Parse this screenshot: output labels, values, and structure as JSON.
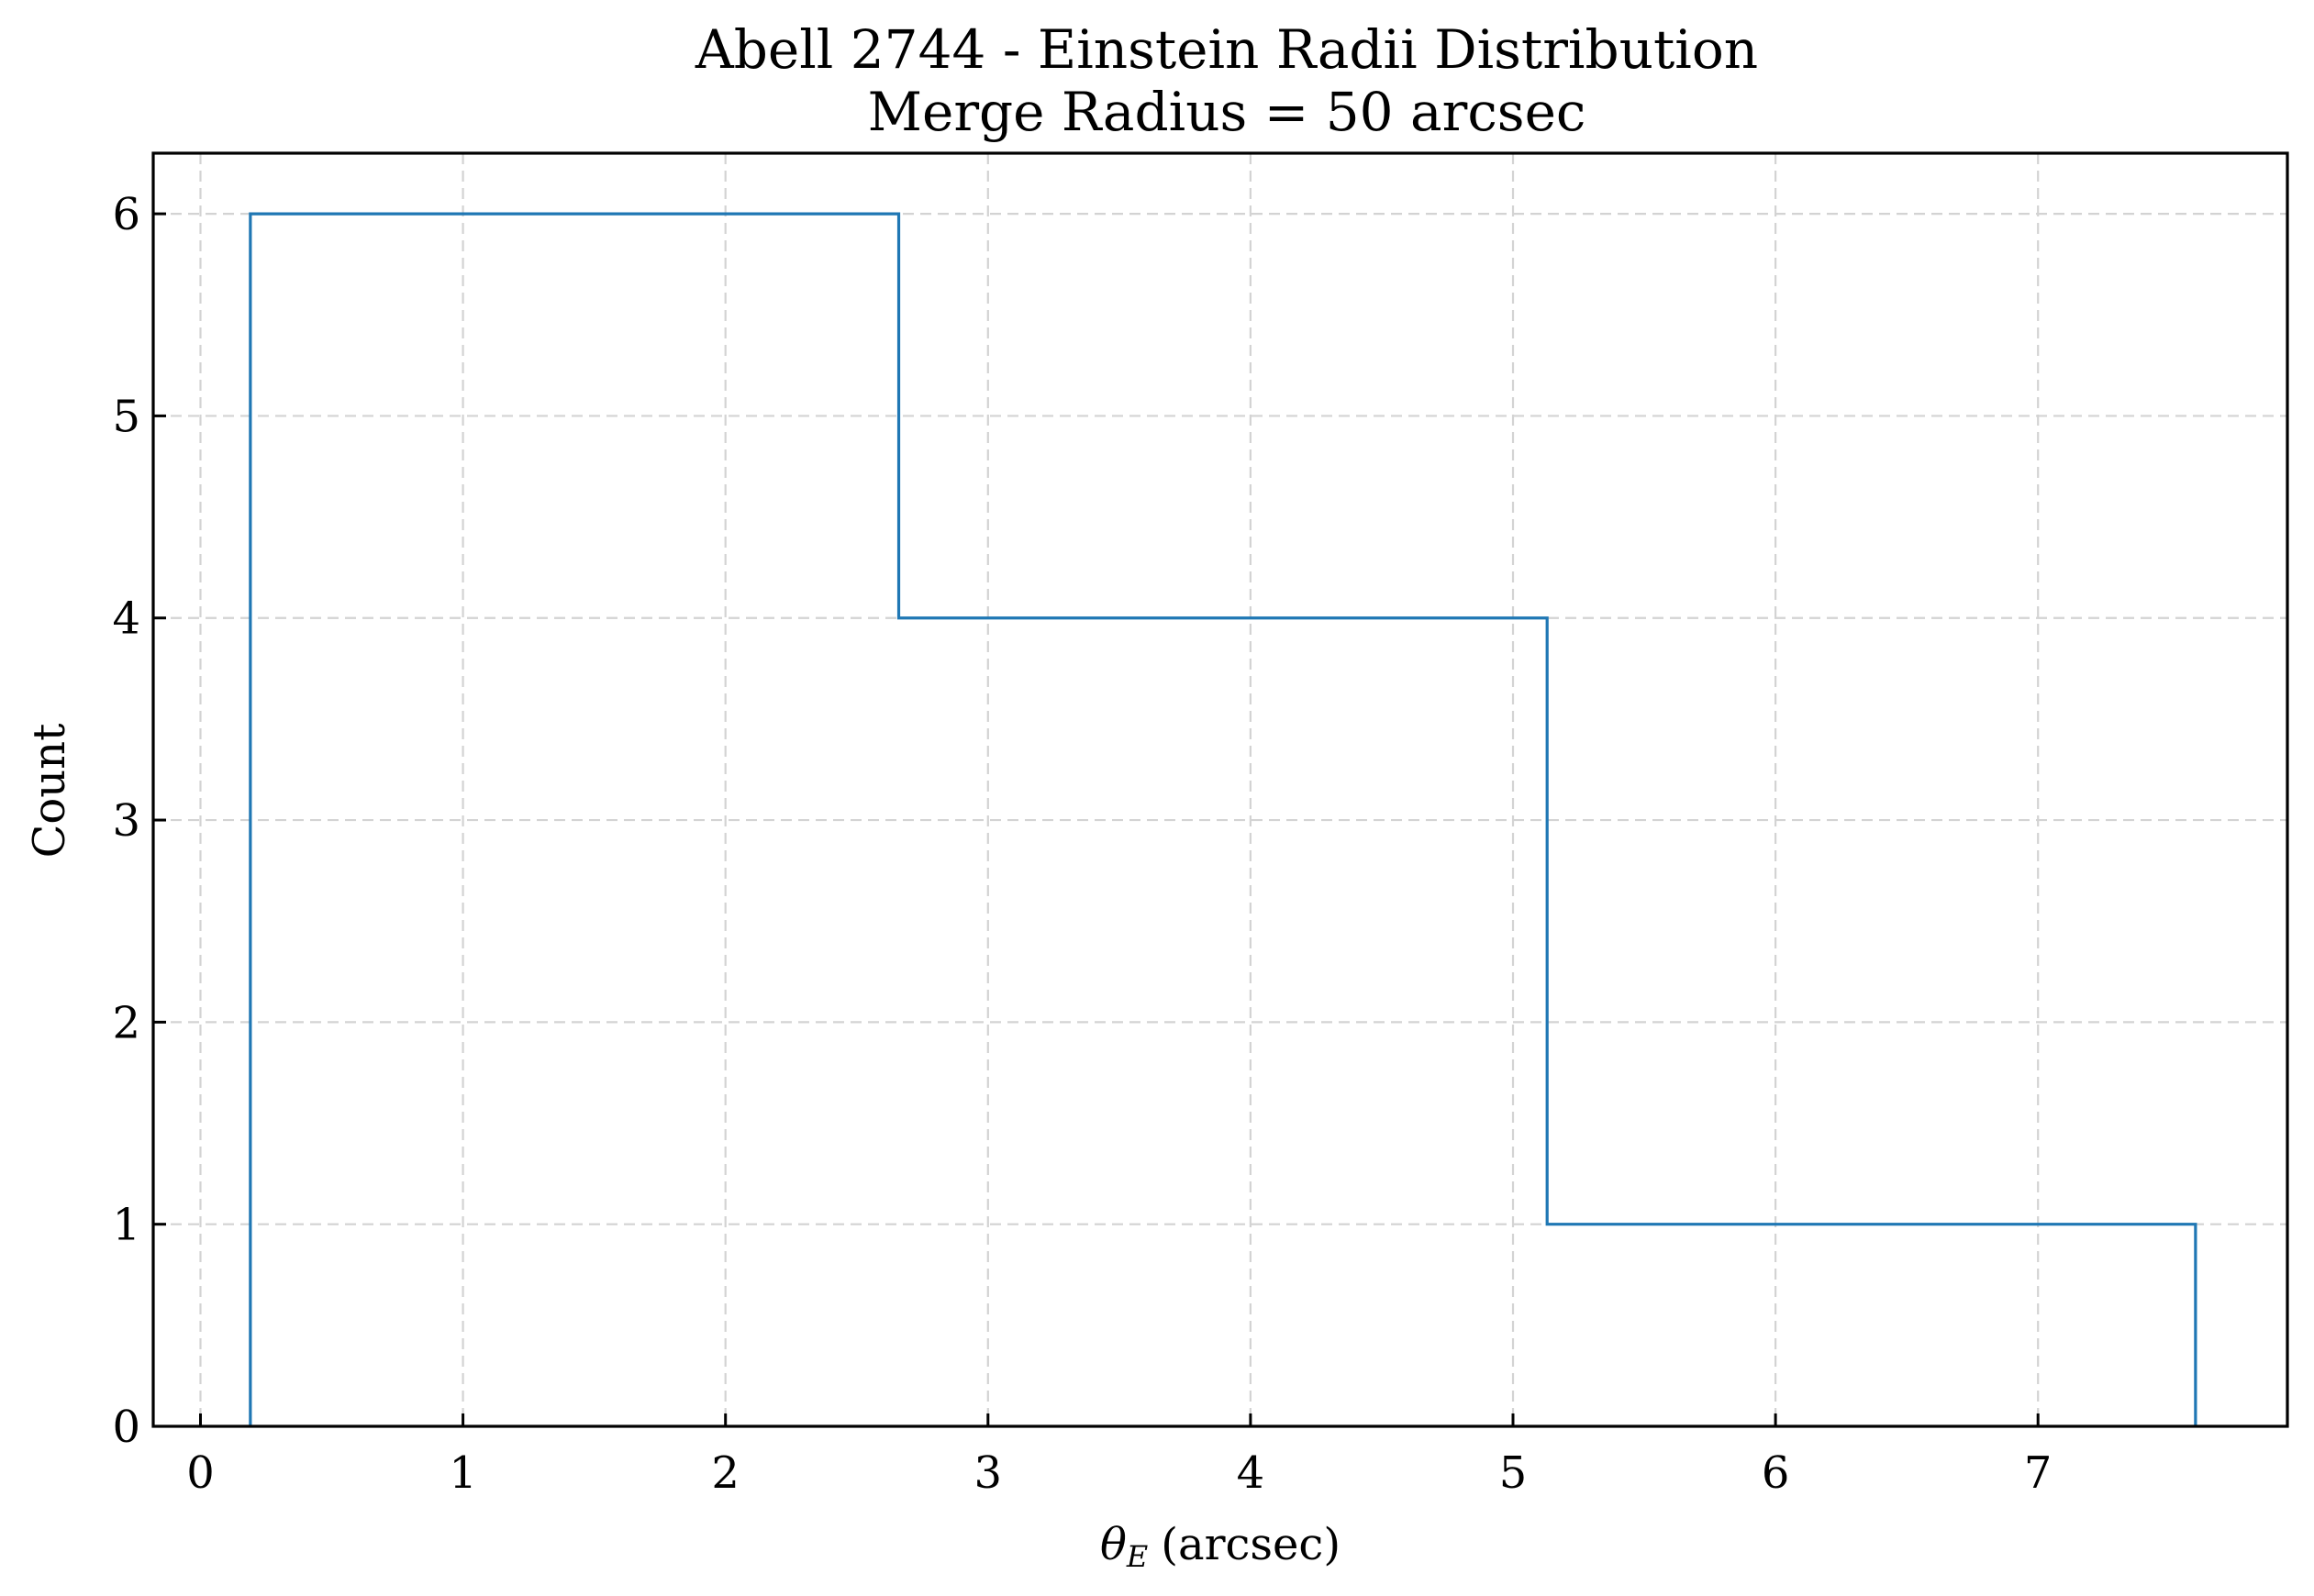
{
  "chart_data": {
    "type": "histogram",
    "title": "Abell 2744 - Einstein Radii Distribution",
    "subtitle": "Merge Radius = 50 arcsec",
    "xlabel": "(arcsec)",
    "xlabel_symbol": "θ",
    "xlabel_subscript": "E",
    "ylabel": "Count",
    "bin_edges": [
      0.19,
      2.66,
      5.13,
      7.6
    ],
    "counts": [
      6,
      4,
      1
    ],
    "xlim": [
      -0.18,
      7.95
    ],
    "ylim": [
      0,
      6.3
    ],
    "x_ticks": [
      0,
      1,
      2,
      3,
      4,
      5,
      6,
      7
    ],
    "y_ticks": [
      0,
      1,
      2,
      3,
      4,
      5,
      6
    ],
    "grid": true,
    "histtype": "step",
    "color": "#1f77b4"
  }
}
